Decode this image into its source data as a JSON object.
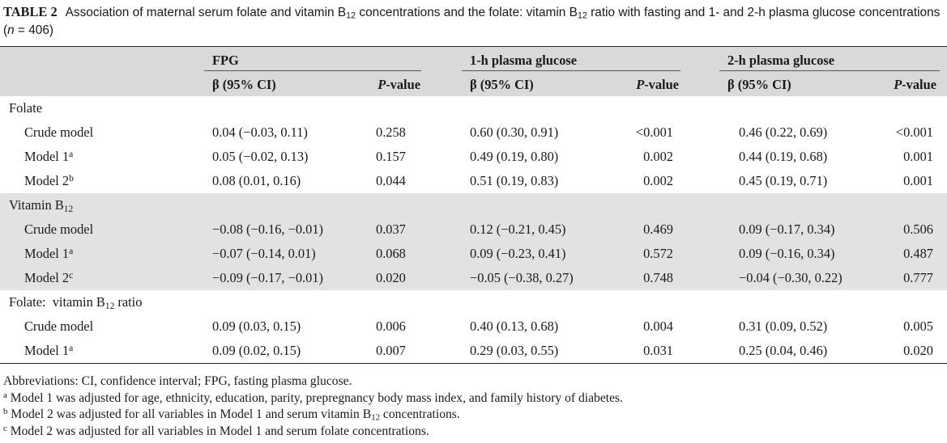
{
  "caption": {
    "label": "TABLE 2",
    "title_pre": "Association of maternal serum folate and vitamin B",
    "title_sub": "12",
    "title_mid": " concentrations and the folate: vitamin B",
    "title_sub2": "12",
    "title_post": " ratio with fasting and 1- and 2-h plasma glucose concentrations (",
    "n_label": "n",
    "n_value": " = 406)"
  },
  "header": {
    "groups": [
      "FPG",
      "1-h plasma glucose",
      "2-h plasma glucose"
    ],
    "beta_label": "β (95% CI)",
    "p_label_italic": "P",
    "p_label_rest": "-value"
  },
  "sections": [
    {
      "label": "Folate",
      "rows": [
        {
          "label": "Crude model",
          "sup": "",
          "fpg_beta": "0.04 (−0.03, 0.11)",
          "fpg_p": "0.258",
          "h1_beta": "0.60 (0.30, 0.91)",
          "h1_p": "<0.001",
          "h2_beta": "0.46 (0.22, 0.69)",
          "h2_p": "<0.001"
        },
        {
          "label": "Model 1",
          "sup": "a",
          "fpg_beta": "0.05 (−0.02, 0.13)",
          "fpg_p": "0.157",
          "h1_beta": "0.49 (0.19, 0.80)",
          "h1_p": "0.002",
          "h2_beta": "0.44 (0.19, 0.68)",
          "h2_p": "0.001"
        },
        {
          "label": "Model 2",
          "sup": "b",
          "fpg_beta": "0.08 (0.01, 0.16)",
          "fpg_p": "0.044",
          "h1_beta": "0.51 (0.19, 0.83)",
          "h1_p": "0.002",
          "h2_beta": "0.45 (0.19, 0.71)",
          "h2_p": "0.001"
        }
      ]
    },
    {
      "label": "Vitamin B",
      "label_sub": "12",
      "rows": [
        {
          "label": "Crude model",
          "sup": "",
          "fpg_beta": "−0.08 (−0.16, −0.01)",
          "fpg_p": "0.037",
          "h1_beta": "0.12 (−0.21, 0.45)",
          "h1_p": "0.469",
          "h2_beta": "0.09 (−0.17, 0.34)",
          "h2_p": "0.506"
        },
        {
          "label": "Model 1",
          "sup": "a",
          "fpg_beta": "−0.07 (−0.14, 0.01)",
          "fpg_p": "0.068",
          "h1_beta": "0.09 (−0.23, 0.41)",
          "h1_p": "0.572",
          "h2_beta": "0.09 (−0.16, 0.34)",
          "h2_p": "0.487"
        },
        {
          "label": "Model 2",
          "sup": "c",
          "fpg_beta": "−0.09 (−0.17, −0.01)",
          "fpg_p": "0.020",
          "h1_beta": "−0.05 (−0.38, 0.27)",
          "h1_p": "0.748",
          "h2_beta": "−0.04 (−0.30, 0.22)",
          "h2_p": "0.777"
        }
      ]
    },
    {
      "label": "Folate:  vitamin B",
      "label_sub": "12",
      "label_post": " ratio",
      "rows": [
        {
          "label": "Crude model",
          "sup": "",
          "fpg_beta": "0.09 (0.03, 0.15)",
          "fpg_p": "0.006",
          "h1_beta": "0.40 (0.13, 0.68)",
          "h1_p": "0.004",
          "h2_beta": "0.31 (0.09, 0.52)",
          "h2_p": "0.005"
        },
        {
          "label": "Model 1",
          "sup": "a",
          "fpg_beta": "0.09 (0.02, 0.15)",
          "fpg_p": "0.007",
          "h1_beta": "0.29 (0.03, 0.55)",
          "h1_p": "0.031",
          "h2_beta": "0.25 (0.04, 0.46)",
          "h2_p": "0.020"
        }
      ]
    }
  ],
  "notes": {
    "abbreviations": "Abbreviations: CI, confidence interval; FPG, fasting plasma glucose.",
    "a_mark": "a",
    "a_text": " Model 1 was adjusted for age, ethnicity, education, parity, prepregnancy body mass index, and family history of diabetes.",
    "b_mark": "b",
    "b_text_pre": " Model 2 was adjusted for all variables in Model 1 and serum vitamin B",
    "b_sub": "12",
    "b_text_post": " concentrations.",
    "c_mark": "c",
    "c_text": " Model 2 was adjusted for all variables in Model 1 and serum folate concentrations."
  }
}
